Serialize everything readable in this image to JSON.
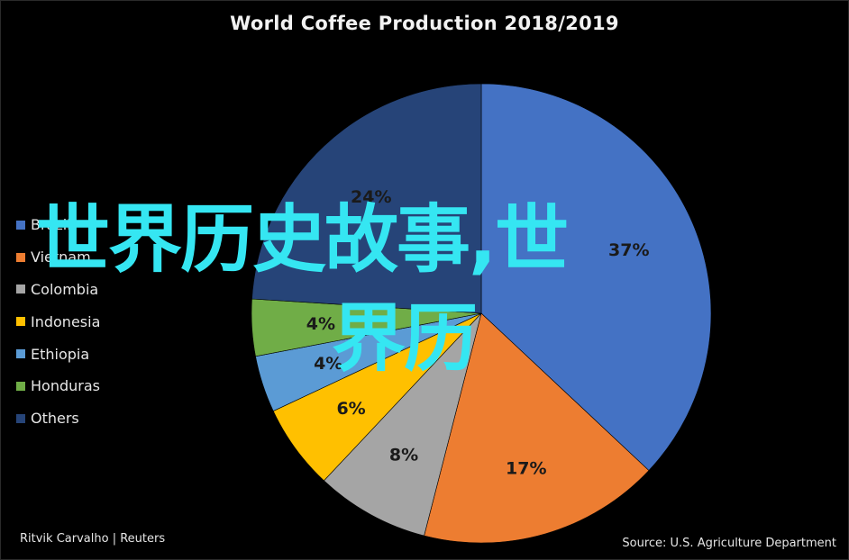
{
  "chart_data": {
    "type": "pie",
    "title": "World Coffee Production 2018/2019",
    "categories": [
      "Brazil",
      "Vietnam",
      "Colombia",
      "Indonesia",
      "Ethiopia",
      "Honduras",
      "Others"
    ],
    "values": [
      37,
      17,
      8,
      6,
      4,
      4,
      24
    ],
    "value_labels": [
      "37%",
      "17%",
      "8%",
      "6%",
      "4%",
      "4%",
      "24%"
    ],
    "colors": [
      "#4472C4",
      "#ED7D31",
      "#A5A5A5",
      "#FFC000",
      "#5B9BD5",
      "#70AD47",
      "#264478"
    ],
    "start_angle": "12 o'clock",
    "direction": "clockwise",
    "legend_position": "left"
  },
  "overlay_text": {
    "line1": "世界历史故事,世",
    "line2": "界历"
  },
  "credit": "Ritvik Carvalho | Reuters",
  "source": "Source: U.S. Agriculture Department"
}
